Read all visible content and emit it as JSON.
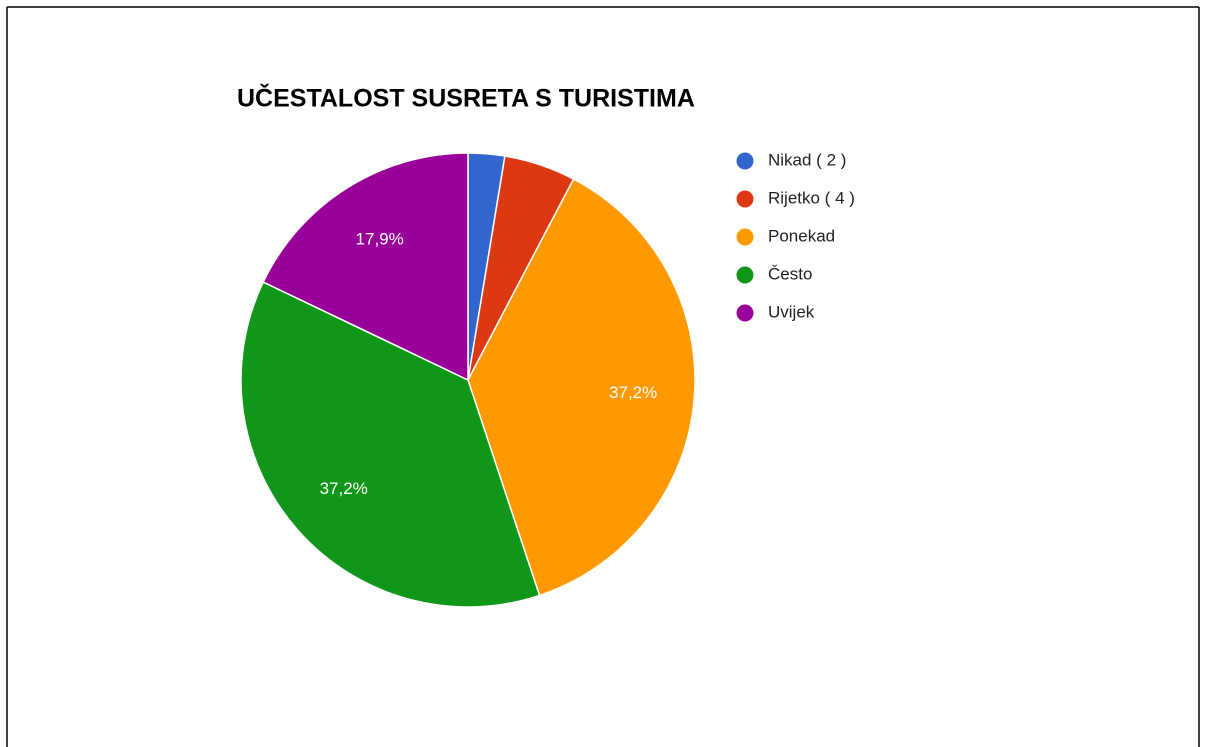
{
  "chart_data": {
    "type": "pie",
    "title": "UČESTALOST SUSRETA S TURISTIMA",
    "categories": [
      "Nikad ( 2 )",
      "Rijetko ( 4 )",
      "Ponekad",
      "Često",
      "Uvijek"
    ],
    "values": [
      2.6,
      5.1,
      37.2,
      37.2,
      17.9
    ],
    "value_labels": [
      null,
      null,
      "37,2%",
      "37,2%",
      "17,9%"
    ],
    "colors": [
      "#3366cc",
      "#dc3912",
      "#ff9900",
      "#109618",
      "#990099"
    ],
    "legend": "right"
  }
}
